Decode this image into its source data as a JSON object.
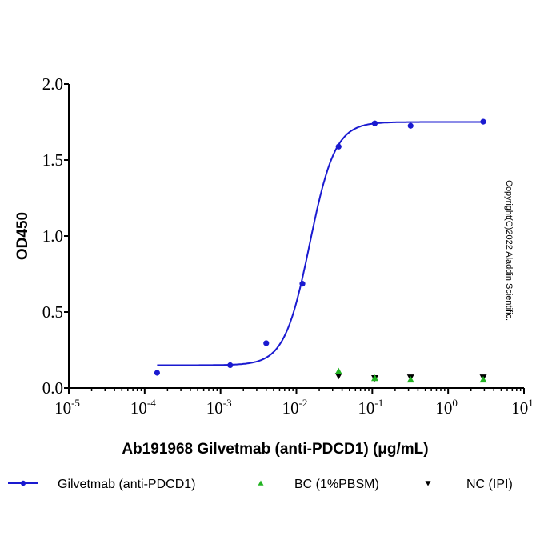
{
  "chart_data": {
    "type": "scatter",
    "xscale": "log",
    "xlim": [
      1e-05,
      10
    ],
    "ylim": [
      0,
      2.0
    ],
    "xlabel": "Ab191968 Gilvetmab (anti-PDCD1) (μg/mL)",
    "ylabel": "OD450",
    "yticks": [
      "0.0",
      "0.5",
      "1.0",
      "1.5",
      "2.0"
    ],
    "xticks": [
      {
        "base": "10",
        "exp": "-5"
      },
      {
        "base": "10",
        "exp": "-4"
      },
      {
        "base": "10",
        "exp": "-3"
      },
      {
        "base": "10",
        "exp": "-2"
      },
      {
        "base": "10",
        "exp": "-1"
      },
      {
        "base": "10",
        "exp": "0"
      },
      {
        "base": "10",
        "exp": "1"
      }
    ],
    "legend_position": "bottom",
    "series": [
      {
        "name": "Gilvetmab (anti-PDCD1)",
        "color": "#1a1ad0",
        "marker": "circle",
        "line": "4PL fit",
        "fit": {
          "bottom": 0.15,
          "top": 1.75,
          "ec50": 0.015,
          "hill": 2.6
        },
        "x": [
          0.000146,
          0.00134,
          0.004,
          0.012,
          0.036,
          0.108,
          0.32,
          2.9
        ],
        "y": [
          0.1,
          0.15,
          0.295,
          0.686,
          1.588,
          1.741,
          1.725,
          1.752
        ]
      },
      {
        "name": "BC (1%PBSM)",
        "color": "#22b322",
        "marker": "triangle-up",
        "x": [
          0.036,
          0.108,
          0.32,
          2.9
        ],
        "y": [
          0.11,
          0.065,
          0.055,
          0.055
        ]
      },
      {
        "name": "NC (IPI)",
        "color": "#000000",
        "marker": "triangle-down",
        "x": [
          0.036,
          0.108,
          0.32,
          2.9
        ],
        "y": [
          0.08,
          0.065,
          0.07,
          0.07
        ]
      }
    ]
  },
  "copyright": "Copyright(C)2022 Aladdin Scientific."
}
